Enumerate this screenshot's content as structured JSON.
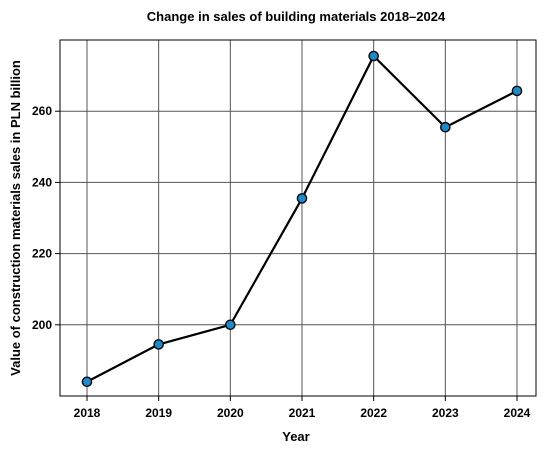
{
  "chart_data": {
    "type": "line",
    "title": "Change in sales of building materials 2018–2024",
    "xlabel": "Year",
    "ylabel": "Value of construction materials sales in PLN billion",
    "x": [
      "2018",
      "2019",
      "2020",
      "2021",
      "2022",
      "2023",
      "2024"
    ],
    "series": [
      {
        "values": [
          184,
          194.5,
          200,
          235.5,
          275.5,
          255.5,
          265.7
        ]
      }
    ],
    "ylim": [
      180,
      280
    ],
    "yticks": [
      200,
      220,
      240,
      260
    ],
    "grid": true,
    "colors": {
      "line": "#000000",
      "marker_fill": "#1f8ac9",
      "marker_edge": "#0a0a0a"
    }
  }
}
